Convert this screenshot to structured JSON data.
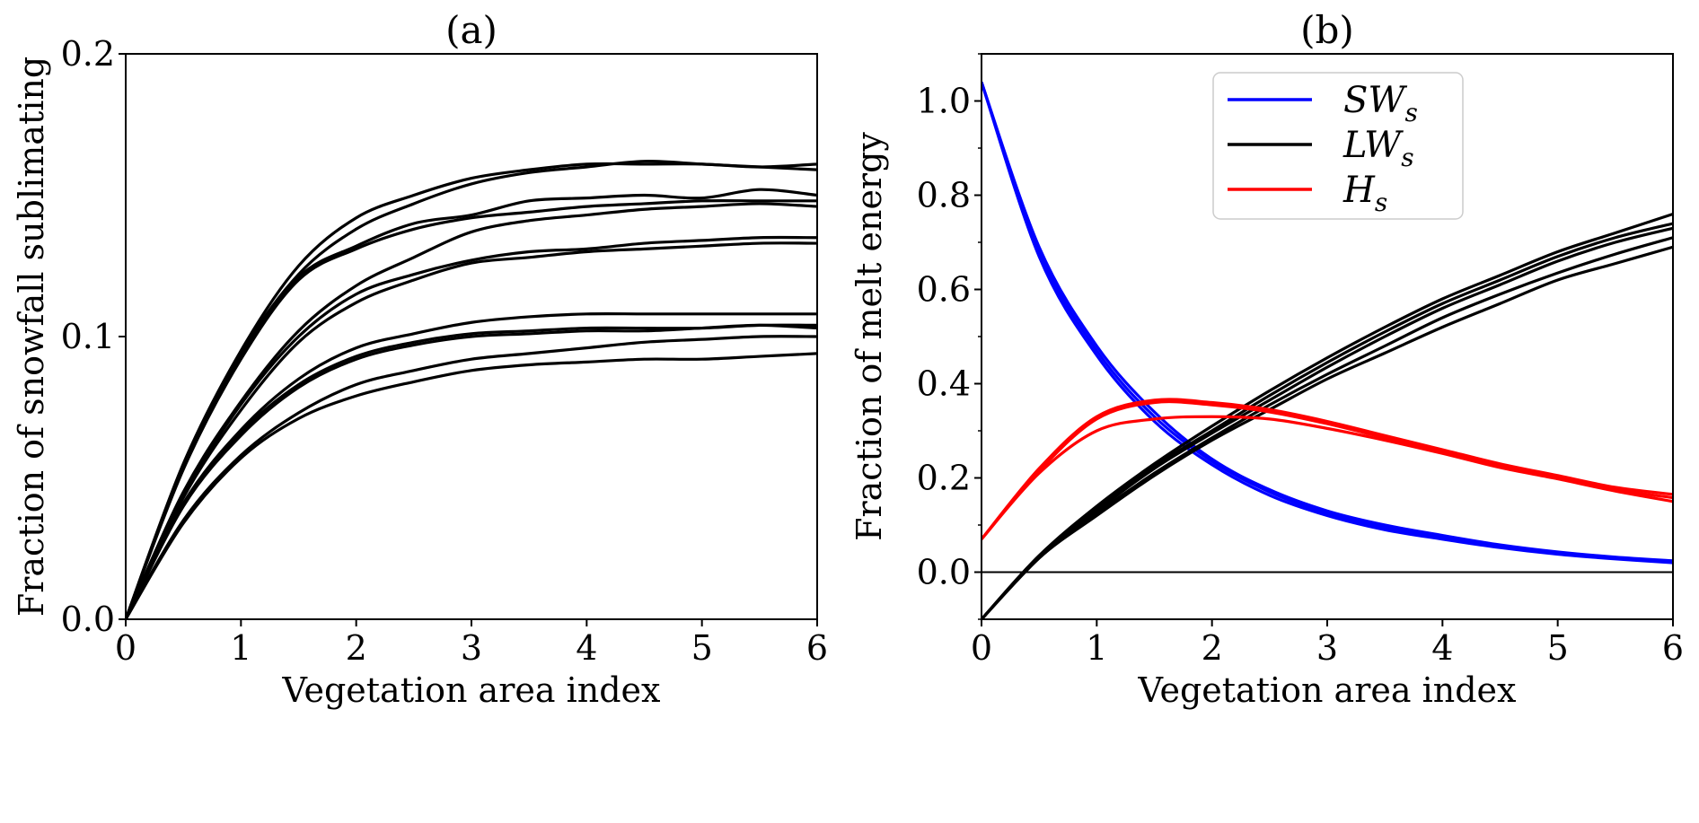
{
  "chart_data": [
    {
      "type": "line",
      "title": "(a)",
      "xlabel": "Vegetation area index",
      "ylabel": "Fraction of snowfall sublimating",
      "xlim": [
        0,
        6
      ],
      "ylim": [
        0,
        0.2
      ],
      "xticks": [
        "0",
        "1",
        "2",
        "3",
        "4",
        "5",
        "6"
      ],
      "yticks": [
        "0.0",
        "0.1",
        "0.2"
      ],
      "x": [
        0,
        0.5,
        1,
        1.5,
        2,
        2.5,
        3,
        3.5,
        4,
        4.5,
        5,
        5.5,
        6
      ],
      "series": [
        {
          "color": "#000000",
          "values": [
            0,
            0.055,
            0.095,
            0.125,
            0.142,
            0.15,
            0.156,
            0.159,
            0.161,
            0.161,
            0.161,
            0.16,
            0.161
          ]
        },
        {
          "color": "#000000",
          "values": [
            0,
            0.054,
            0.094,
            0.122,
            0.138,
            0.147,
            0.154,
            0.158,
            0.16,
            0.162,
            0.161,
            0.16,
            0.159
          ]
        },
        {
          "color": "#000000",
          "values": [
            0,
            0.054,
            0.093,
            0.121,
            0.132,
            0.14,
            0.143,
            0.148,
            0.149,
            0.15,
            0.149,
            0.152,
            0.15
          ]
        },
        {
          "color": "#000000",
          "values": [
            0,
            0.053,
            0.092,
            0.12,
            0.131,
            0.138,
            0.142,
            0.144,
            0.146,
            0.147,
            0.148,
            0.148,
            0.148
          ]
        },
        {
          "color": "#000000",
          "values": [
            0,
            0.045,
            0.077,
            0.102,
            0.118,
            0.128,
            0.137,
            0.141,
            0.143,
            0.145,
            0.146,
            0.147,
            0.146
          ]
        },
        {
          "color": "#000000",
          "values": [
            0,
            0.044,
            0.076,
            0.1,
            0.115,
            0.122,
            0.127,
            0.13,
            0.131,
            0.133,
            0.134,
            0.135,
            0.135
          ]
        },
        {
          "color": "#000000",
          "values": [
            0,
            0.043,
            0.074,
            0.098,
            0.112,
            0.12,
            0.126,
            0.128,
            0.13,
            0.131,
            0.132,
            0.133,
            0.133
          ]
        },
        {
          "color": "#000000",
          "values": [
            0,
            0.041,
            0.067,
            0.085,
            0.096,
            0.101,
            0.105,
            0.107,
            0.108,
            0.108,
            0.108,
            0.108,
            0.108
          ]
        },
        {
          "color": "#000000",
          "values": [
            0,
            0.04,
            0.066,
            0.083,
            0.093,
            0.098,
            0.101,
            0.102,
            0.103,
            0.103,
            0.103,
            0.104,
            0.104
          ]
        },
        {
          "color": "#000000",
          "values": [
            0,
            0.04,
            0.065,
            0.082,
            0.092,
            0.097,
            0.1,
            0.101,
            0.102,
            0.102,
            0.103,
            0.104,
            0.103
          ]
        },
        {
          "color": "#000000",
          "values": [
            0,
            0.035,
            0.058,
            0.073,
            0.083,
            0.088,
            0.092,
            0.094,
            0.096,
            0.098,
            0.099,
            0.1,
            0.1
          ]
        },
        {
          "color": "#000000",
          "values": [
            0,
            0.034,
            0.057,
            0.071,
            0.079,
            0.084,
            0.088,
            0.09,
            0.091,
            0.092,
            0.092,
            0.093,
            0.094
          ]
        }
      ]
    },
    {
      "type": "line",
      "title": "(b)",
      "xlabel": "Vegetation area index",
      "ylabel": "Fraction of melt energy",
      "xlim": [
        0,
        6
      ],
      "ylim": [
        -0.1,
        1.1
      ],
      "xticks": [
        "0",
        "1",
        "2",
        "3",
        "4",
        "5",
        "6"
      ],
      "yticks": [
        "0.0",
        "0.2",
        "0.4",
        "0.6",
        "0.8",
        "1.0"
      ],
      "hline": 0,
      "legend_position": "top-right",
      "legend": [
        {
          "name": "SW",
          "sub": "s",
          "color": "#0000ff"
        },
        {
          "name": "LW",
          "sub": "s",
          "color": "#000000"
        },
        {
          "name": "H",
          "sub": "s",
          "color": "#ff0000"
        }
      ],
      "x": [
        0,
        0.5,
        1,
        1.5,
        2,
        2.5,
        3,
        3.5,
        4,
        4.5,
        5,
        5.5,
        6
      ],
      "series": [
        {
          "group": "SW",
          "color": "#0000ff",
          "values": [
            1.04,
            0.69,
            0.48,
            0.34,
            0.24,
            0.175,
            0.13,
            0.1,
            0.078,
            0.058,
            0.043,
            0.032,
            0.024
          ]
        },
        {
          "group": "SW",
          "color": "#0000ff",
          "values": [
            1.04,
            0.68,
            0.47,
            0.33,
            0.235,
            0.17,
            0.125,
            0.095,
            0.074,
            0.055,
            0.04,
            0.03,
            0.022
          ]
        },
        {
          "group": "SW",
          "color": "#0000ff",
          "values": [
            1.04,
            0.67,
            0.46,
            0.32,
            0.228,
            0.163,
            0.12,
            0.09,
            0.07,
            0.052,
            0.038,
            0.028,
            0.02
          ]
        },
        {
          "group": "LW",
          "color": "#000000",
          "values": [
            -0.1,
            0.035,
            0.14,
            0.23,
            0.31,
            0.385,
            0.455,
            0.52,
            0.58,
            0.63,
            0.68,
            0.72,
            0.76
          ]
        },
        {
          "group": "LW",
          "color": "#000000",
          "values": [
            -0.1,
            0.035,
            0.135,
            0.225,
            0.3,
            0.375,
            0.445,
            0.51,
            0.57,
            0.62,
            0.67,
            0.71,
            0.74
          ]
        },
        {
          "group": "LW",
          "color": "#000000",
          "values": [
            -0.1,
            0.03,
            0.13,
            0.22,
            0.295,
            0.365,
            0.435,
            0.5,
            0.56,
            0.61,
            0.66,
            0.7,
            0.73
          ]
        },
        {
          "group": "LW",
          "color": "#000000",
          "values": [
            -0.1,
            0.03,
            0.125,
            0.21,
            0.285,
            0.355,
            0.42,
            0.48,
            0.54,
            0.59,
            0.635,
            0.675,
            0.71
          ]
        },
        {
          "group": "LW",
          "color": "#000000",
          "values": [
            -0.1,
            0.03,
            0.12,
            0.205,
            0.28,
            0.345,
            0.41,
            0.465,
            0.52,
            0.57,
            0.62,
            0.655,
            0.69
          ]
        },
        {
          "group": "H",
          "color": "#ff0000",
          "values": [
            0.07,
            0.22,
            0.33,
            0.365,
            0.36,
            0.345,
            0.32,
            0.29,
            0.26,
            0.23,
            0.205,
            0.18,
            0.165
          ]
        },
        {
          "group": "H",
          "color": "#ff0000",
          "values": [
            0.07,
            0.215,
            0.325,
            0.36,
            0.355,
            0.34,
            0.315,
            0.285,
            0.255,
            0.225,
            0.2,
            0.175,
            0.158
          ]
        },
        {
          "group": "H",
          "color": "#ff0000",
          "values": [
            0.07,
            0.21,
            0.3,
            0.325,
            0.33,
            0.325,
            0.305,
            0.28,
            0.252,
            0.222,
            0.198,
            0.172,
            0.15
          ]
        }
      ]
    }
  ]
}
